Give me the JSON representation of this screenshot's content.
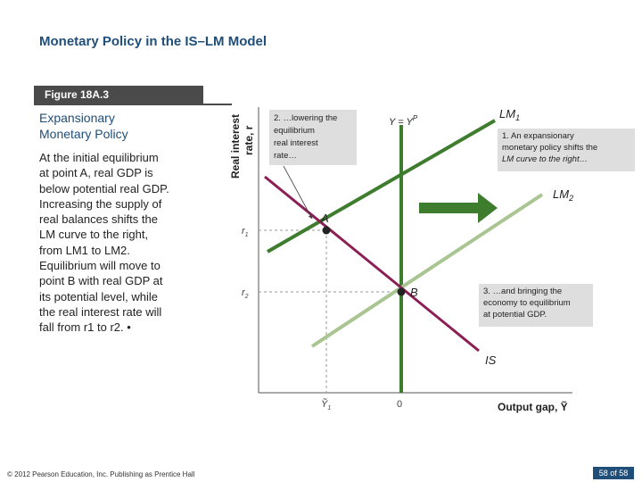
{
  "slide": {
    "title": "Monetary Policy in the IS–LM Model",
    "figure_label": "Figure 18A.3",
    "subtitle_line1": "Expansionary",
    "subtitle_line2": "Monetary Policy",
    "body": [
      "At the initial equilibrium",
      "at point A, real GDP is",
      "below potential real GDP.",
      "Increasing the supply of",
      "real balances shifts the",
      "LM curve to the right,",
      "from LM1 to LM2.",
      "Equilibrium will move to",
      "point B with real GDP at",
      "its potential level, while",
      "the real interest rate will",
      "fall from r1 to r2. •"
    ],
    "footer": "© 2012 Pearson Education, Inc. Publishing as Prentice Hall",
    "page": "58 of 58"
  },
  "diagram": {
    "y_axis_label_1": "Real interest",
    "y_axis_label_2": "rate, r",
    "x_axis_label": "Output gap, Ỹ",
    "x_ticks": {
      "y1": "Ỹ",
      "y1_sub": "1",
      "zero": "0"
    },
    "y_ticks": {
      "r1": "r",
      "r1_sub": "1",
      "r2": "r",
      "r2_sub": "2"
    },
    "potential_label": "Y = Y",
    "potential_sup": "P",
    "curves": {
      "lm1": "LM",
      "lm1_sub": "1",
      "lm2": "LM",
      "lm2_sub": "2",
      "is": "IS"
    },
    "points": {
      "a": "A",
      "b": "B"
    },
    "callouts": {
      "c1": [
        "1. An expansionary",
        "monetary policy shifts the",
        "LM curve to the right…"
      ],
      "c2": [
        "2. …lowering the",
        "equilibrium",
        "real interest",
        "rate…"
      ],
      "c3": [
        "3. …and bringing the",
        "economy to equilibrium",
        "at potential GDP."
      ]
    },
    "colors": {
      "lm1": "#3e7d2e",
      "lm2": "#a9c592",
      "is": "#8b1e54",
      "potential": "#3e7d2e",
      "arrow": "#3e7d2e",
      "callout_bg": "#dedede",
      "title": "#1f4e79"
    }
  }
}
